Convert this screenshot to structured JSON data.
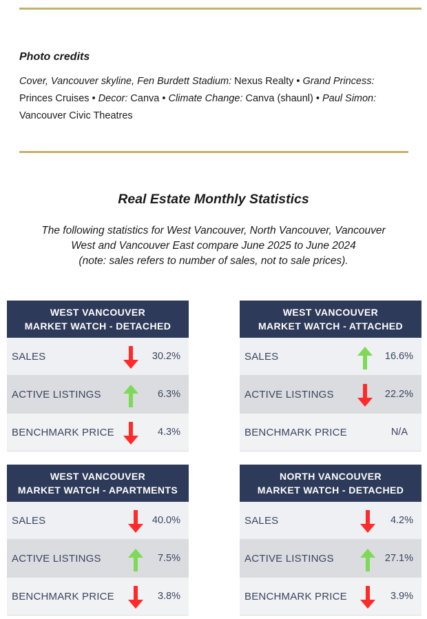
{
  "credits": {
    "title": "Photo credits",
    "parts": [
      {
        "t": "Cover, Vancouver skyline, Fen Burdett Stadium:",
        "i": true
      },
      {
        "t": " Nexus Realty •  ",
        "i": false
      },
      {
        "t": "Grand Princess:",
        "i": true
      },
      {
        "t": " Princes Cruises • ",
        "i": false
      },
      {
        "t": "Decor:",
        "i": true
      },
      {
        "t": " Canva • ",
        "i": false
      },
      {
        "t": "Climate Change:",
        "i": true
      },
      {
        "t": " Canva (shaunl) • ",
        "i": false
      },
      {
        "t": "Paul Simon:",
        "i": true
      },
      {
        "t": " Vancouver Civic Theatres",
        "i": false
      }
    ]
  },
  "stats_title": "Real Estate Monthly Statistics",
  "intro": [
    "The following statistics for West Vancouver, North Vancouver, Vancouver",
    "West and Vancouver East compare June 2025 to June 2024",
    "(note: sales refers to number of sales, not to sale prices)."
  ],
  "cards": [
    {
      "header": [
        "WEST VANCOUVER",
        "MARKET WATCH - DETACHED"
      ],
      "rows": [
        {
          "label": "SALES",
          "direction": "down",
          "value": "30.2%"
        },
        {
          "label": "ACTIVE LISTINGS",
          "direction": "up",
          "value": "6.3%"
        },
        {
          "label": "BENCHMARK PRICE",
          "direction": "down",
          "value": "4.3%"
        }
      ]
    },
    {
      "header": [
        "WEST VANCOUVER",
        "MARKET WATCH - ATTACHED"
      ],
      "rows": [
        {
          "label": "SALES",
          "direction": "up",
          "value": "16.6%"
        },
        {
          "label": "ACTIVE LISTINGS",
          "direction": "down",
          "value": "22.2%"
        },
        {
          "label": "BENCHMARK PRICE",
          "direction": "none",
          "value": "N/A"
        }
      ]
    },
    {
      "header": [
        "WEST VANCOUVER",
        "MARKET WATCH - APARTMENTS"
      ],
      "rows": [
        {
          "label": "SALES",
          "direction": "down",
          "value": "40.0%"
        },
        {
          "label": "ACTIVE LISTINGS",
          "direction": "up",
          "value": "7.5%"
        },
        {
          "label": "BENCHMARK PRICE",
          "direction": "down",
          "value": "3.8%"
        }
      ]
    },
    {
      "header": [
        "NORTH VANCOUVER",
        "MARKET WATCH - DETACHED"
      ],
      "rows": [
        {
          "label": "SALES",
          "direction": "down",
          "value": "4.2%"
        },
        {
          "label": "ACTIVE LISTINGS",
          "direction": "up",
          "value": "27.1%"
        },
        {
          "label": "BENCHMARK PRICE",
          "direction": "down",
          "value": "3.9%"
        }
      ]
    }
  ],
  "colors": {
    "up": "#7ed957",
    "down": "#ff2a2a",
    "header": "#2e3a59",
    "rule": "#c4b06a"
  }
}
